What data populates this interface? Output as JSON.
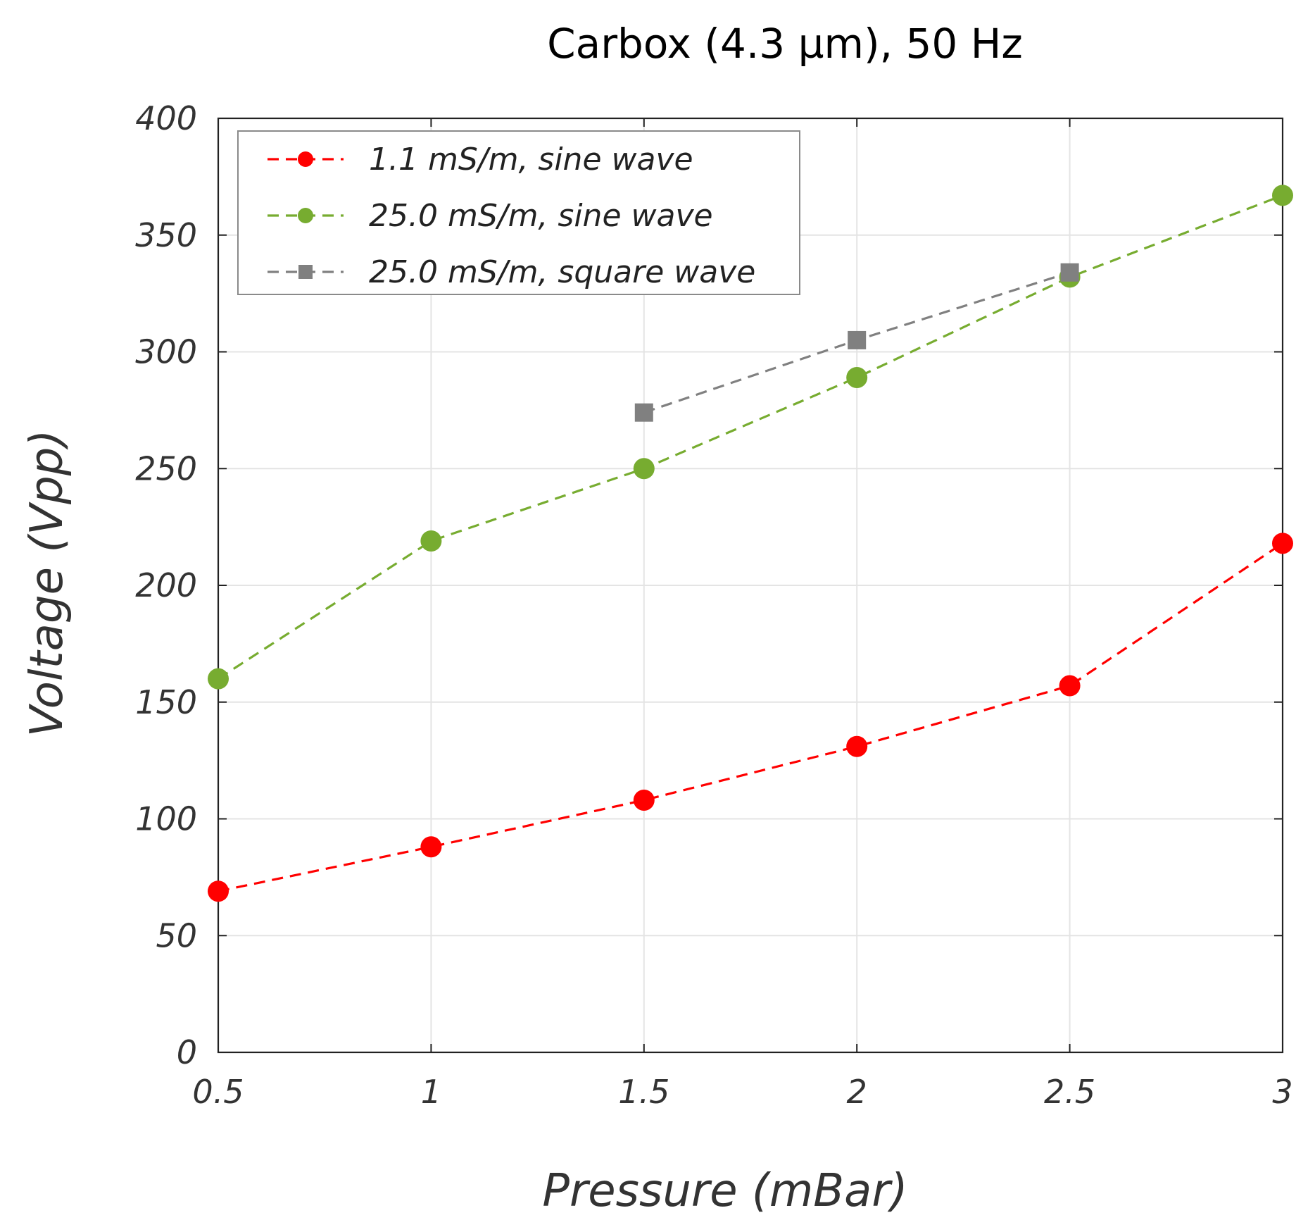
{
  "chart_data": {
    "type": "line",
    "title": "Carbox (4.3 µm), 50 Hz",
    "xlabel": "Pressure (mBar)",
    "ylabel": "Voltage (Vpp)",
    "xlim": [
      0.5,
      3
    ],
    "ylim": [
      0,
      400
    ],
    "x_ticks": [
      0.5,
      1,
      1.5,
      2,
      2.5,
      3
    ],
    "x_tick_labels": [
      "0.5",
      "1",
      "1.5",
      "2",
      "2.5",
      "3"
    ],
    "y_ticks": [
      0,
      50,
      100,
      150,
      200,
      250,
      300,
      350,
      400
    ],
    "y_tick_labels": [
      "0",
      "50",
      "100",
      "150",
      "200",
      "250",
      "300",
      "350",
      "400"
    ],
    "grid": true,
    "legend_position": "top-left",
    "series": [
      {
        "name": "1.1 mS/m, sine wave",
        "color": "#ff0000",
        "marker": "circle",
        "line_style": "dashed",
        "x": [
          0.5,
          1,
          1.5,
          2,
          2.5,
          3
        ],
        "values": [
          69,
          88,
          108,
          131,
          157,
          218
        ]
      },
      {
        "name": "25.0 mS/m, sine wave",
        "color": "#77ac30",
        "marker": "circle",
        "line_style": "dashed",
        "x": [
          0.5,
          1,
          1.5,
          2,
          2.5,
          3
        ],
        "values": [
          160,
          219,
          250,
          289,
          332,
          367
        ]
      },
      {
        "name": "25.0 mS/m, square wave",
        "color": "#808080",
        "marker": "square",
        "line_style": "dashed",
        "x": [
          1.5,
          2,
          2.5
        ],
        "values": [
          274,
          305,
          334
        ]
      }
    ]
  }
}
